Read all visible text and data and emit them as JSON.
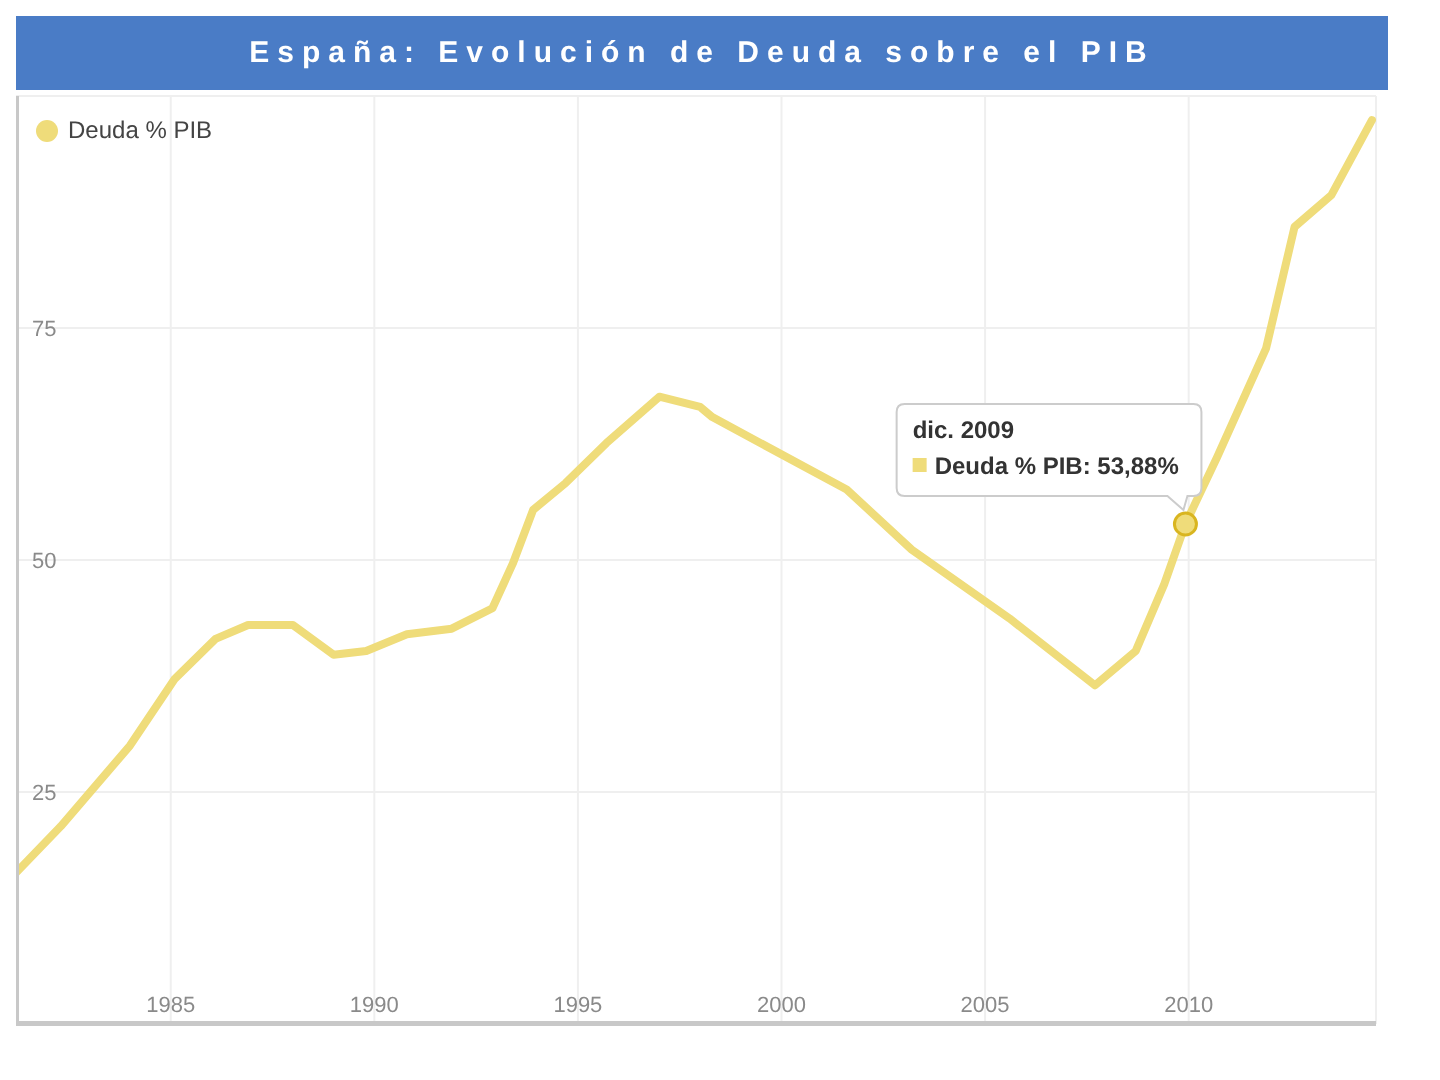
{
  "chart_data": {
    "type": "line",
    "title": "España: Evolución de Deuda sobre el PIB",
    "x": [
      1981.2,
      1982.3,
      1984.0,
      1985.1,
      1986.1,
      1986.9,
      1988.0,
      1989.0,
      1989.8,
      1990.8,
      1991.9,
      1992.9,
      1993.4,
      1993.9,
      1994.7,
      1995.7,
      1997.0,
      1998.0,
      1998.3,
      2001.6,
      2003.2,
      2005.6,
      2007.7,
      2008.7,
      2009.4,
      2009.92,
      2010.7,
      2011.9,
      2012.6,
      2013.5,
      2014.5
    ],
    "series": [
      {
        "name": "Deuda % PIB",
        "color": "#efdc7a",
        "values": [
          16.3,
          21.3,
          30.0,
          37.2,
          41.5,
          43.0,
          43.0,
          39.8,
          40.2,
          42.0,
          42.6,
          44.8,
          49.6,
          55.4,
          58.3,
          62.6,
          67.6,
          66.5,
          65.4,
          57.6,
          51.1,
          43.7,
          36.5,
          40.2,
          47.4,
          53.88,
          61.1,
          72.8,
          85.9,
          89.3,
          97.4
        ]
      }
    ],
    "xlim": [
      1981.2,
      2014.6
    ],
    "xticks": [
      1985,
      1990,
      1995,
      2000,
      2005,
      2010
    ],
    "ylim": [
      0,
      100
    ],
    "yticks": [
      25,
      50,
      75
    ],
    "grid": true,
    "legend": "top left",
    "annotations": [
      {
        "text": "dic. 2009\nDeuda % PIB: 53,88%",
        "x": 2009.92,
        "y": 53.88
      }
    ]
  }
}
